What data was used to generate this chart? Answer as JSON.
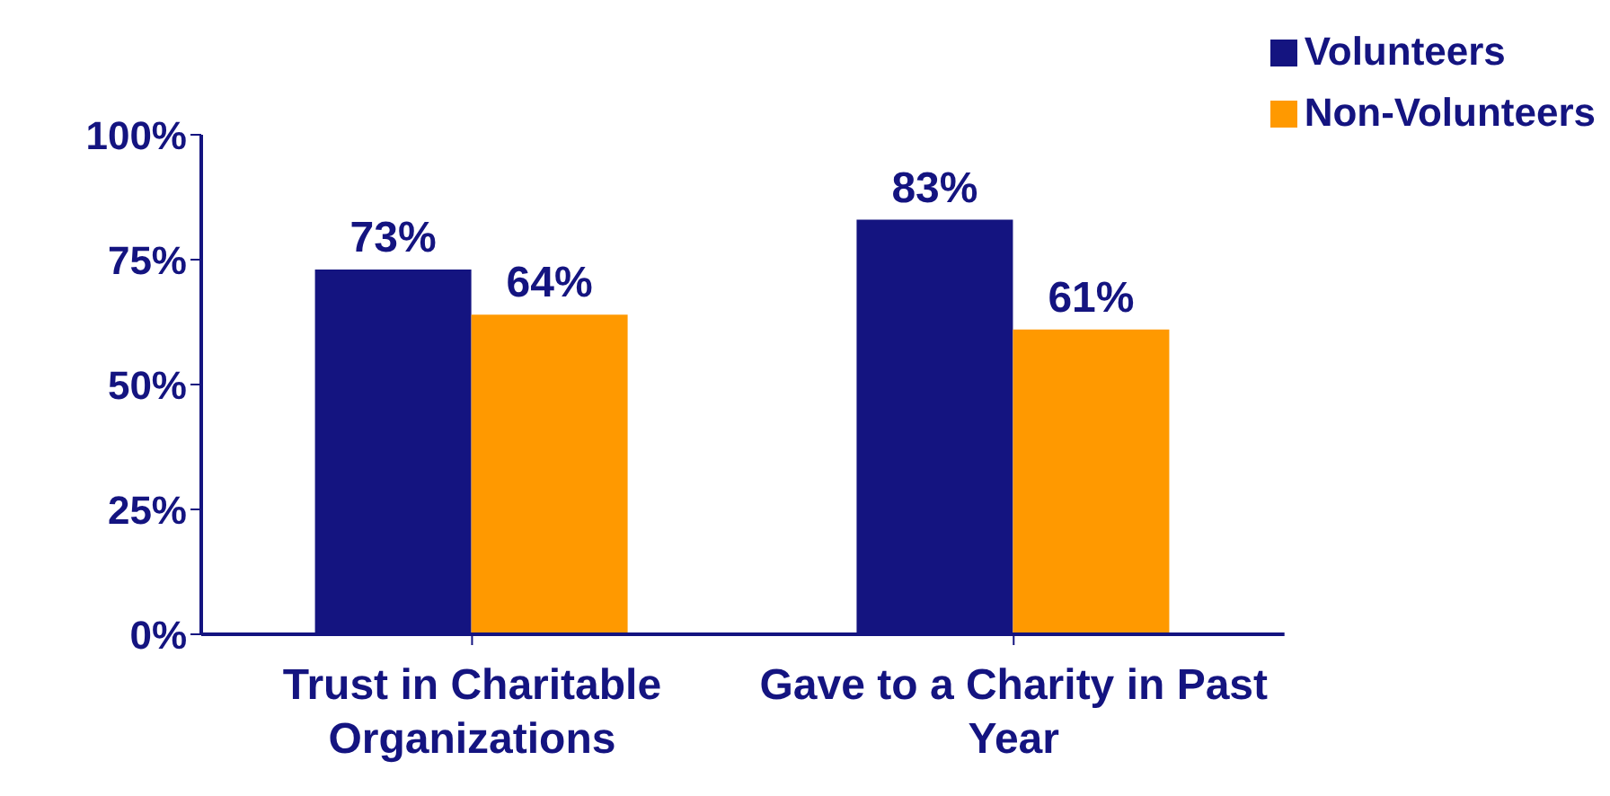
{
  "chart_data": {
    "type": "bar",
    "categories": [
      "Trust in Charitable Organizations",
      "Gave to a Charity in Past Year"
    ],
    "series": [
      {
        "name": "Volunteers",
        "color": "#141480",
        "values": [
          73,
          83
        ],
        "value_labels": [
          "73%",
          "83%"
        ]
      },
      {
        "name": "Non-Volunteers",
        "color": "#ff9900",
        "values": [
          64,
          61
        ],
        "value_labels": [
          "64%",
          "61%"
        ]
      }
    ],
    "ylim": [
      0,
      100
    ],
    "yticks": [
      {
        "value": 0,
        "label": "0%"
      },
      {
        "value": 25,
        "label": "25%"
      },
      {
        "value": 50,
        "label": "50%"
      },
      {
        "value": 75,
        "label": "75%"
      },
      {
        "value": 100,
        "label": "100%"
      }
    ],
    "grid": false,
    "legend": "top right"
  }
}
